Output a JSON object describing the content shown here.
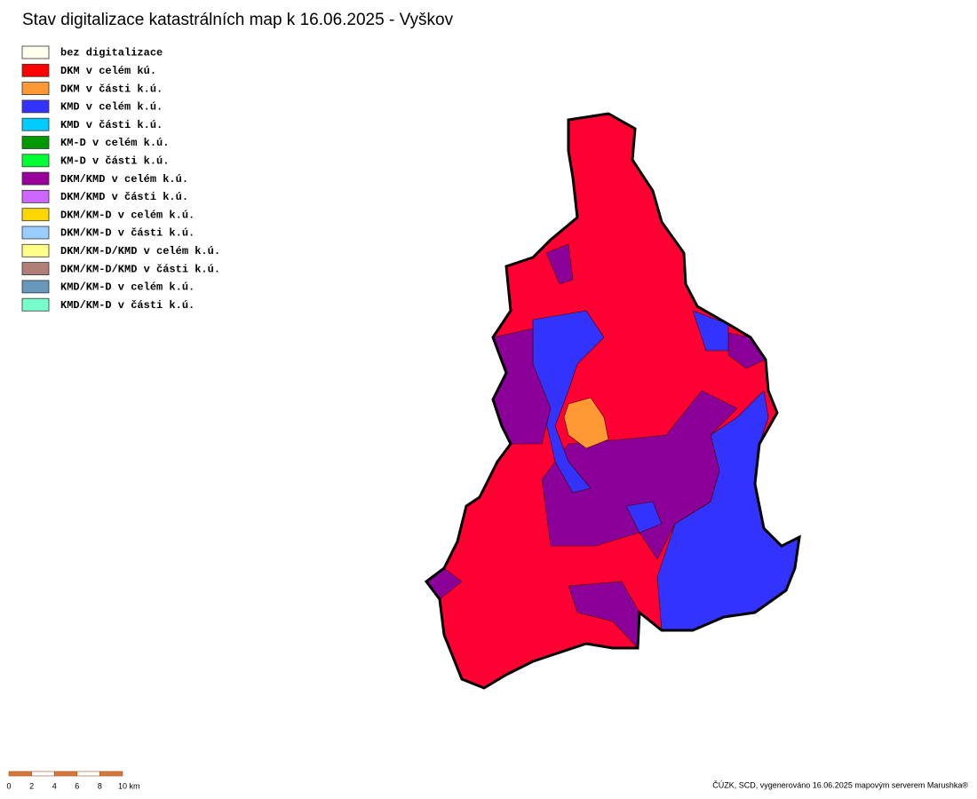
{
  "header": {
    "title": "Stav digitalizace katastrálních map k 16.06.2025 - Vyškov"
  },
  "legend": {
    "items": [
      {
        "label": "bez digitalizace",
        "color": "#ffffee"
      },
      {
        "label": "DKM v celém kú.",
        "color": "#ff0000"
      },
      {
        "label": "DKM v části k.ú.",
        "color": "#ff9933"
      },
      {
        "label": "KMD v celém k.ú.",
        "color": "#3333ff"
      },
      {
        "label": "KMD v části k.ú.",
        "color": "#00ccff"
      },
      {
        "label": "KM-D v celém k.ú.",
        "color": "#009900"
      },
      {
        "label": "KM-D v části k.ú.",
        "color": "#00ff33"
      },
      {
        "label": "DKM/KMD v celém k.ú.",
        "color": "#990099"
      },
      {
        "label": "DKM/KMD v části k.ú.",
        "color": "#cc66ff"
      },
      {
        "label": "DKM/KM-D v celém k.ú.",
        "color": "#ffd700"
      },
      {
        "label": "DKM/KM-D v části k.ú.",
        "color": "#99ccff"
      },
      {
        "label": "DKM/KM-D/KMD v celém k.ú.",
        "color": "#ffff88"
      },
      {
        "label": "DKM/KM-D/KMD v části k.ú.",
        "color": "#b07f78"
      },
      {
        "label": "KMD/KM-D v celém k.ú.",
        "color": "#6699bb"
      },
      {
        "label": "KMD/KM-D v části k.ú.",
        "color": "#77ffcc"
      }
    ]
  },
  "scale_bar": {
    "labels": [
      "0",
      "2",
      "4",
      "6",
      "8",
      "10 km"
    ]
  },
  "footer": {
    "credit": "ČÚZK, SCD, vygenerováno 16.06.2025 mapovým serverem Marushka®"
  }
}
